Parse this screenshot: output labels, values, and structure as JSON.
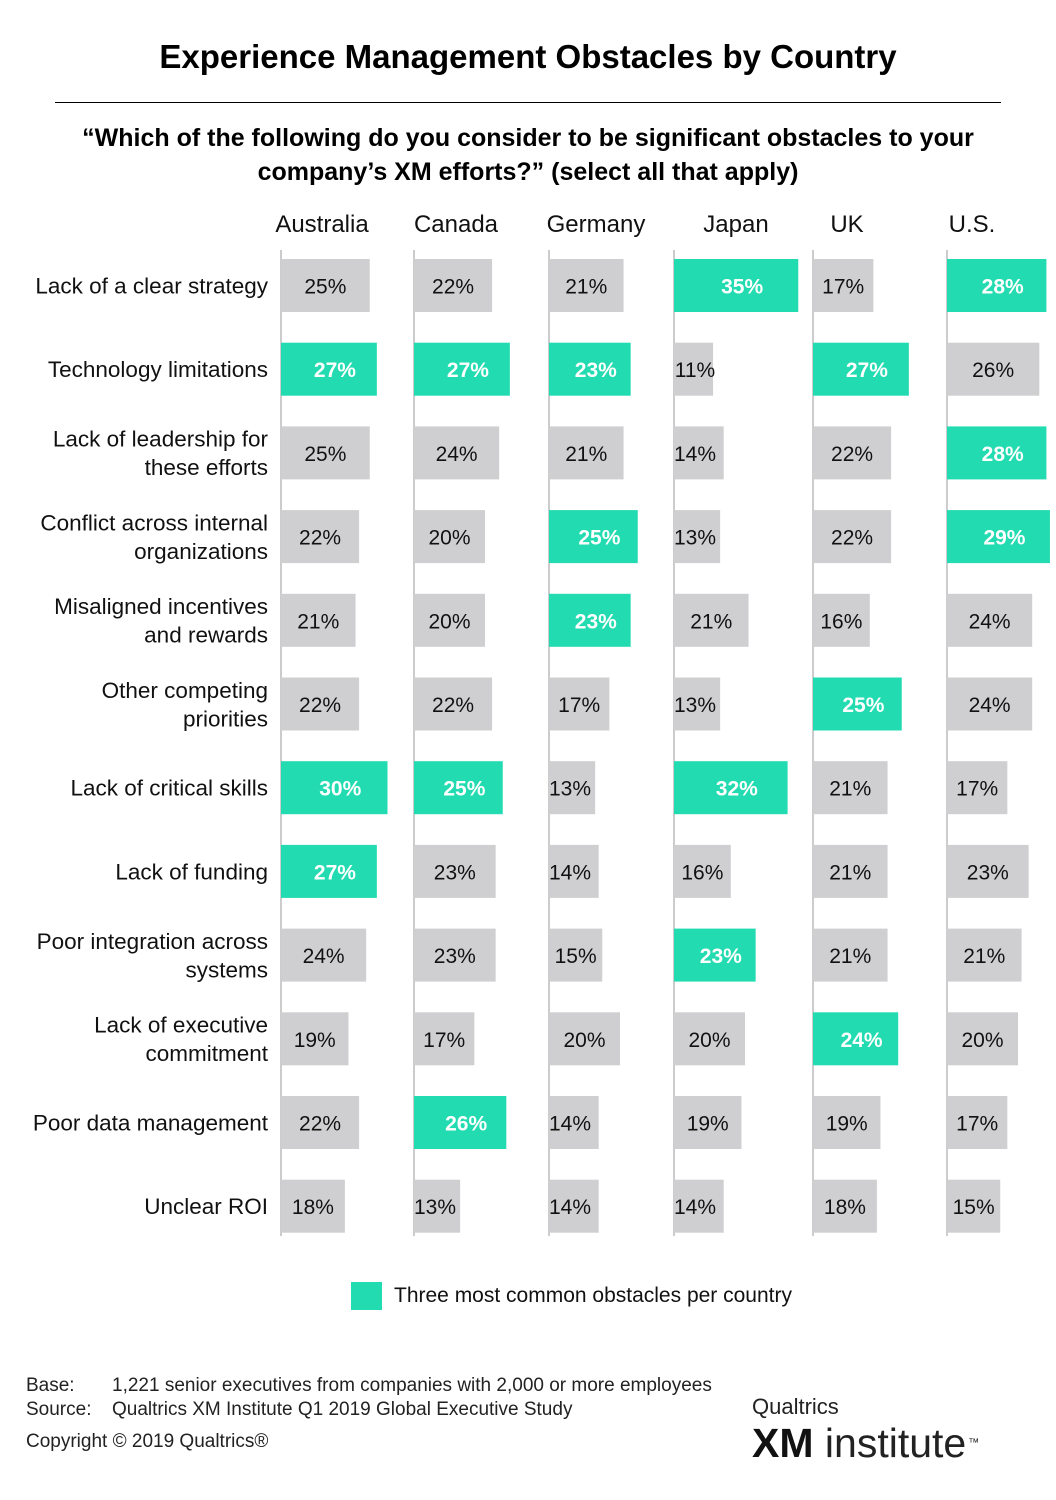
{
  "title": "Experience Management Obstacles by Country",
  "question": "“Which of the following do you consider to be significant obstacles to your company’s XM efforts?” (select all that apply)",
  "colors": {
    "highlight": "#22dbb0",
    "bar": "#cfcfd1",
    "axis": "#9a9a9a"
  },
  "chart_data": {
    "type": "bar",
    "orientation": "horizontal-small-multiples",
    "unit": "%",
    "columns": [
      "Australia",
      "Canada",
      "Germany",
      "Japan",
      "UK",
      "U.S."
    ],
    "categories": [
      "Lack of a clear strategy",
      "Technology limitations",
      "Lack of leadership for these efforts",
      "Conflict across internal organizations",
      "Misaligned incentives and rewards",
      "Other competing priorities",
      "Lack of critical skills",
      "Lack of funding",
      "Poor integration across systems",
      "Lack of executive commitment",
      "Poor data management",
      "Unclear ROI"
    ],
    "category_lines": [
      [
        "Lack of a clear strategy"
      ],
      [
        "Technology limitations"
      ],
      [
        "Lack of leadership for",
        "these efforts"
      ],
      [
        "Conflict across internal",
        "organizations"
      ],
      [
        "Misaligned incentives",
        "and rewards"
      ],
      [
        "Other competing",
        "priorities"
      ],
      [
        "Lack of critical skills"
      ],
      [
        "Lack of funding"
      ],
      [
        "Poor integration across",
        "systems"
      ],
      [
        "Lack of executive",
        "commitment"
      ],
      [
        "Poor data management"
      ],
      [
        "Unclear ROI"
      ]
    ],
    "series": [
      {
        "name": "Australia",
        "values": [
          25,
          27,
          25,
          22,
          21,
          22,
          30,
          27,
          24,
          19,
          22,
          18
        ],
        "highlight": [
          false,
          true,
          false,
          false,
          false,
          false,
          true,
          true,
          false,
          false,
          false,
          false
        ]
      },
      {
        "name": "Canada",
        "values": [
          22,
          27,
          24,
          20,
          20,
          22,
          25,
          23,
          23,
          17,
          26,
          13
        ],
        "highlight": [
          false,
          true,
          false,
          false,
          false,
          false,
          true,
          false,
          false,
          false,
          true,
          false
        ]
      },
      {
        "name": "Germany",
        "values": [
          21,
          23,
          21,
          25,
          23,
          17,
          13,
          14,
          15,
          20,
          14,
          14
        ],
        "highlight": [
          false,
          true,
          false,
          true,
          true,
          false,
          false,
          false,
          false,
          false,
          false,
          false
        ]
      },
      {
        "name": "Japan",
        "values": [
          35,
          11,
          14,
          13,
          21,
          13,
          32,
          16,
          23,
          20,
          19,
          14
        ],
        "highlight": [
          true,
          false,
          false,
          false,
          false,
          false,
          true,
          false,
          true,
          false,
          false,
          false
        ]
      },
      {
        "name": "UK",
        "values": [
          17,
          27,
          22,
          22,
          16,
          25,
          21,
          21,
          21,
          24,
          19,
          18
        ],
        "highlight": [
          false,
          true,
          false,
          false,
          false,
          true,
          false,
          false,
          false,
          true,
          false,
          false
        ]
      },
      {
        "name": "U.S.",
        "values": [
          28,
          26,
          28,
          29,
          24,
          24,
          17,
          23,
          21,
          20,
          17,
          15
        ],
        "highlight": [
          true,
          false,
          true,
          true,
          false,
          false,
          false,
          false,
          false,
          false,
          false,
          false
        ]
      }
    ],
    "legend": "Three most common obstacles per country",
    "legend_position": "bottom-center"
  },
  "footer": {
    "base_label": "Base:",
    "base_text": "1,221 senior executives from companies with 2,000 or more employees",
    "source_label": "Source:",
    "source_text": "Qualtrics XM Institute Q1 2019 Global Executive Study",
    "copyright": "Copyright © 2019 Qualtrics®"
  },
  "logo": {
    "top": "Qualtrics",
    "xm": "XM",
    "institute": "institute",
    "tm": "™"
  }
}
